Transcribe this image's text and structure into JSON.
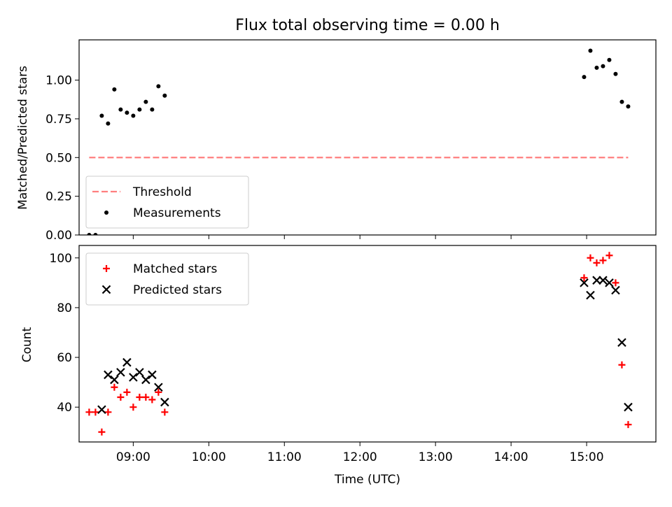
{
  "chart_data": [
    {
      "type": "scatter",
      "title": "Flux total observing time = 0.00 h",
      "xlabel": "",
      "ylabel": "Matched/Predicted stars",
      "xlim": [
        "08:17",
        "15:55"
      ],
      "ylim": [
        0,
        1.26
      ],
      "yticks": [
        "0.00",
        "0.25",
        "0.50",
        "0.75",
        "1.00"
      ],
      "grid": false,
      "legend_position": "bottom-left",
      "series": [
        {
          "name": "Threshold",
          "kind": "line",
          "style": "dashed",
          "color": "#ff7f7f",
          "points": [
            [
              "08:25",
              0.5
            ],
            [
              "15:33",
              0.5
            ]
          ]
        },
        {
          "name": "Measurements",
          "kind": "scatter",
          "marker": "dot",
          "color": "#000000",
          "points": [
            [
              "08:25",
              0.0
            ],
            [
              "08:30",
              0.0
            ],
            [
              "08:35",
              0.77
            ],
            [
              "08:40",
              0.72
            ],
            [
              "08:45",
              0.94
            ],
            [
              "08:50",
              0.81
            ],
            [
              "08:55",
              0.79
            ],
            [
              "09:00",
              0.77
            ],
            [
              "09:05",
              0.81
            ],
            [
              "09:10",
              0.86
            ],
            [
              "09:15",
              0.81
            ],
            [
              "09:20",
              0.96
            ],
            [
              "09:25",
              0.9
            ],
            [
              "14:58",
              1.02
            ],
            [
              "15:03",
              1.19
            ],
            [
              "15:08",
              1.08
            ],
            [
              "15:13",
              1.09
            ],
            [
              "15:18",
              1.13
            ],
            [
              "15:23",
              1.04
            ],
            [
              "15:28",
              0.86
            ],
            [
              "15:33",
              0.83
            ]
          ]
        }
      ]
    },
    {
      "type": "scatter",
      "title": "",
      "xlabel": "Time (UTC)",
      "ylabel": "Count",
      "xlim": [
        "08:17",
        "15:55"
      ],
      "ylim": [
        26,
        105
      ],
      "xticks": [
        "09:00",
        "10:00",
        "11:00",
        "12:00",
        "13:00",
        "14:00",
        "15:00"
      ],
      "yticks": [
        "40",
        "60",
        "80",
        "100"
      ],
      "grid": false,
      "legend_position": "top-left",
      "series": [
        {
          "name": "Matched stars",
          "marker": "plus",
          "color": "#ff0000",
          "points": [
            [
              "08:25",
              38
            ],
            [
              "08:30",
              38
            ],
            [
              "08:35",
              30
            ],
            [
              "08:40",
              38
            ],
            [
              "08:45",
              48
            ],
            [
              "08:50",
              44
            ],
            [
              "08:55",
              46
            ],
            [
              "09:00",
              40
            ],
            [
              "09:05",
              44
            ],
            [
              "09:10",
              44
            ],
            [
              "09:15",
              43
            ],
            [
              "09:20",
              46
            ],
            [
              "09:25",
              38
            ],
            [
              "14:58",
              92
            ],
            [
              "15:03",
              100
            ],
            [
              "15:08",
              98
            ],
            [
              "15:13",
              99
            ],
            [
              "15:18",
              101
            ],
            [
              "15:23",
              90
            ],
            [
              "15:28",
              57
            ],
            [
              "15:33",
              33
            ]
          ]
        },
        {
          "name": "Predicted stars",
          "marker": "x",
          "color": "#000000",
          "points": [
            [
              "08:35",
              39
            ],
            [
              "08:40",
              53
            ],
            [
              "08:45",
              51
            ],
            [
              "08:50",
              54
            ],
            [
              "08:55",
              58
            ],
            [
              "09:00",
              52
            ],
            [
              "09:05",
              54
            ],
            [
              "09:10",
              51
            ],
            [
              "09:15",
              53
            ],
            [
              "09:20",
              48
            ],
            [
              "09:25",
              42
            ],
            [
              "14:58",
              90
            ],
            [
              "15:03",
              85
            ],
            [
              "15:08",
              91
            ],
            [
              "15:13",
              91
            ],
            [
              "15:18",
              90
            ],
            [
              "15:23",
              87
            ],
            [
              "15:28",
              66
            ],
            [
              "15:33",
              40
            ]
          ]
        }
      ]
    }
  ]
}
